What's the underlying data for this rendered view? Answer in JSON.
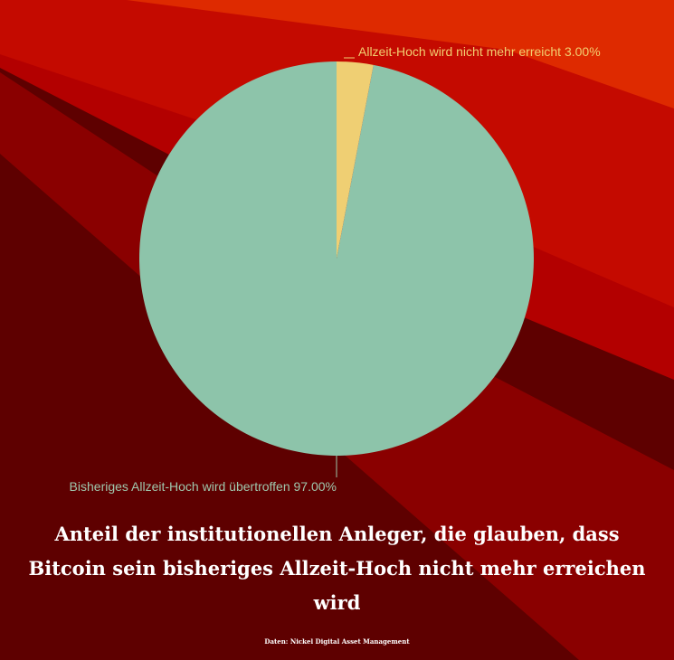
{
  "background": {
    "base": "#5e0000",
    "stripes": [
      "#8a0000",
      "#b30000",
      "#c40a00",
      "#de2a00"
    ]
  },
  "chart_data": {
    "type": "pie",
    "slices": [
      {
        "label": "Allzeit-Hoch wird nicht mehr erreicht",
        "value": 3.0,
        "display": "3.00%",
        "color": "#efcf73",
        "label_color": "#f2cf70"
      },
      {
        "label": "Bisheriges Allzeit-Hoch wird übertroffen",
        "value": 97.0,
        "display": "97.00%",
        "color": "#8dc4aa",
        "label_color": "#9fc7ad"
      }
    ],
    "start_angle_deg": 0,
    "direction": "clockwise",
    "labels_outside": true
  },
  "caption": {
    "line1": "Anteil der institutionellen Anleger, die glauben, dass",
    "line2": "Bitcoin sein bisheriges Allzeit-Hoch nicht mehr erreichen",
    "line3": "wird"
  },
  "source": "Daten:  Nickel Digital Asset Management"
}
